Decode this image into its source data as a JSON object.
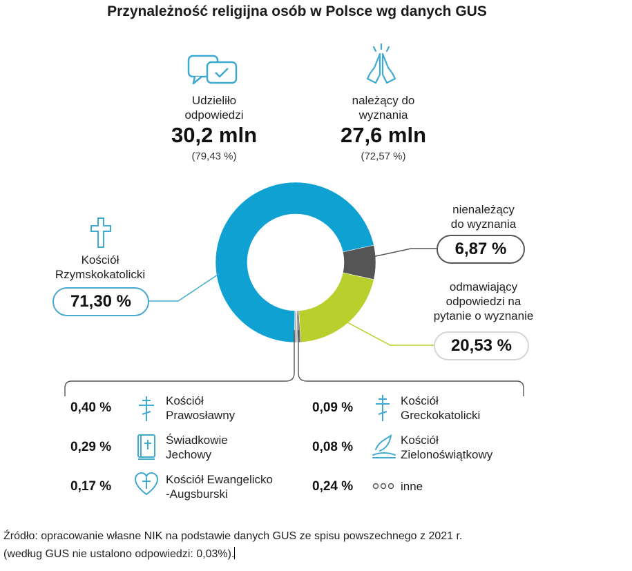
{
  "title": "Przynależność religijna osób w Polsce wg danych GUS",
  "stats": {
    "answered": {
      "label_line1": "Udzieliło",
      "label_line2": "odpowiedzi",
      "value": "30,2 mln",
      "percent": "(79,43 %)"
    },
    "belonging": {
      "label_line1": "należący do",
      "label_line2": "wyznania",
      "value": "27,6 mln",
      "percent": "(72,57 %)"
    }
  },
  "main_categories": {
    "catholic": {
      "label_line1": "Kościół",
      "label_line2": "Rzymskokatolicki",
      "value": "71,30 %"
    },
    "nonbelonging": {
      "label_line1": "nienależący",
      "label_line2": "do wyznania",
      "value": "6,87 %"
    },
    "refused": {
      "label_line1": "odmawiający",
      "label_line2": "odpowiedzi na",
      "label_line3": "pytanie o wyznanie",
      "value": "20,53 %"
    }
  },
  "minor": [
    {
      "value": "0,40 %",
      "name_line1": "Kościół",
      "name_line2": "Prawosławny",
      "icon": "orthodox-cross-icon"
    },
    {
      "value": "0,29 %",
      "name_line1": "Świadkowie",
      "name_line2": "Jechowy",
      "icon": "bible-icon"
    },
    {
      "value": "0,17 %",
      "name_line1": "Kościół Ewangelicko",
      "name_line2": "-Augsburski",
      "icon": "heart-cross-icon"
    },
    {
      "value": "0,09 %",
      "name_line1": "Kościół",
      "name_line2": "Greckokatolicki",
      "icon": "greek-cross-icon"
    },
    {
      "value": "0,08 %",
      "name_line1": "Kościół",
      "name_line2": "Zielonoświątkowy",
      "icon": "dove-icon"
    },
    {
      "value": "0,24 %",
      "name_line1": "inne",
      "name_line2": "",
      "icon": "dots-icon"
    }
  ],
  "footer": {
    "line1": "Źródło: opracowanie własne NIK na podstawie danych GUS ze spisu powszechnego z 2021 r.",
    "line2": "(według GUS nie ustalono odpowiedzi: 0,03%)."
  },
  "colors": {
    "catholic": "#0ea1d1",
    "nonbelonging": "#555555",
    "refused": "#b8cf2e",
    "minor": "#6e6e6e",
    "icon": "#3fa9cf"
  },
  "chart_data": {
    "type": "pie",
    "title": "Przynależność religijna osób w Polsce wg danych GUS",
    "labels": [
      "Kościół Rzymskokatolicki",
      "nienależący do wyznania",
      "odmawiający odpowiedzi na pytanie o wyznanie",
      "Kościół Prawosławny",
      "Świadkowie Jechowy",
      "Kościół Ewangelicko-Augsburski",
      "Kościół Greckokatolicki",
      "Kościół Zielonoświątkowy",
      "inne"
    ],
    "values": [
      71.3,
      6.87,
      20.53,
      0.4,
      0.29,
      0.17,
      0.09,
      0.08,
      0.24
    ]
  }
}
